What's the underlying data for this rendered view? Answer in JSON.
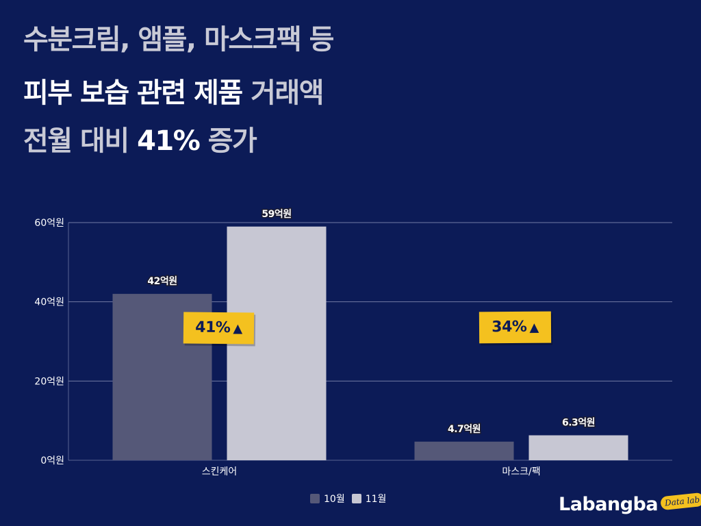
{
  "headline": {
    "line1": "수분크림, 앰플, 마스크팩 등",
    "line2_bright": "피부 보습 관련 제품",
    "line2_muted": " 거래액",
    "line3_muted1": "전월 대비 ",
    "line3_bright": "41%",
    "line3_muted2": " 증가"
  },
  "badges": [
    {
      "text": "41%",
      "arrow": "▲"
    },
    {
      "text": "34%",
      "arrow": "▲"
    }
  ],
  "logo": {
    "text": "Labangba",
    "tag": "Data lab"
  },
  "colors": {
    "background": "#0c1b57",
    "series_oct": "#555878",
    "series_nov": "#c7c7d3",
    "badge": "#f4c11f",
    "grid": "#8c93b8"
  },
  "chart_data": {
    "type": "bar",
    "categories": [
      "스킨케어",
      "마스크/팩"
    ],
    "series": [
      {
        "name": "10월",
        "values": [
          42,
          4.7
        ],
        "labels": [
          "42억원",
          "4.7억원"
        ],
        "color": "#555878"
      },
      {
        "name": "11월",
        "values": [
          59,
          6.3
        ],
        "labels": [
          "59억원",
          "6.3억원"
        ],
        "color": "#c7c7d3"
      }
    ],
    "ylim": [
      0,
      60
    ],
    "yticks": [
      0,
      20,
      40,
      60
    ],
    "ytick_labels": [
      "0억원",
      "20억원",
      "40억원",
      "60억원"
    ],
    "grid": true,
    "legend_position": "bottom-center",
    "title": "",
    "xlabel": "",
    "ylabel": ""
  }
}
